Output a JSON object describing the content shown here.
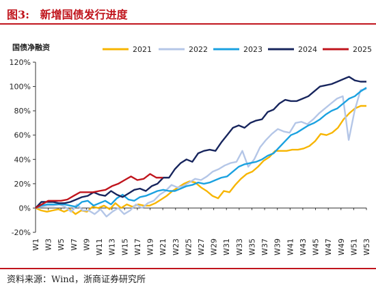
{
  "header": {
    "figure_label": "图3:",
    "title": "新增国债发行进度"
  },
  "source": "资料来源：Wind，浙商证券研究所",
  "colors": {
    "accent": "#c0141c"
  },
  "chart_data": {
    "type": "line",
    "ylabel": "国债净融资",
    "ylim": [
      -20,
      120
    ],
    "yticks": [
      -20,
      0,
      20,
      40,
      60,
      80,
      100,
      120
    ],
    "ytick_labels": [
      "-20%",
      "0%",
      "20%",
      "40%",
      "60%",
      "80%",
      "100%",
      "120%"
    ],
    "xtick_labels": [
      "W1",
      "W3",
      "W5",
      "W7",
      "W9",
      "W11",
      "W13",
      "W15",
      "W17",
      "W19",
      "W21",
      "W23",
      "W25",
      "W27",
      "W29",
      "W31",
      "W33",
      "W35",
      "W37",
      "W39",
      "W41",
      "W43",
      "W45",
      "W47",
      "W49",
      "W51",
      "W53"
    ],
    "legend_position": "top",
    "grid": false,
    "weeks": 53,
    "series": [
      {
        "name": "2021",
        "color": "#f7b500",
        "values": [
          0,
          -2,
          -3,
          -2,
          -1,
          -3,
          -1,
          -5,
          -2,
          -3,
          1,
          0,
          2,
          -1,
          4,
          0,
          3,
          1,
          3,
          2,
          2,
          4,
          7,
          10,
          14,
          17,
          20,
          22,
          21,
          17,
          14,
          10,
          8,
          14,
          13,
          19,
          24,
          28,
          30,
          34,
          39,
          42,
          47,
          47,
          47,
          48,
          48,
          49,
          51,
          55,
          61,
          60,
          62,
          66,
          73,
          78,
          82,
          84,
          84
        ]
      },
      {
        "name": "2022",
        "color": "#b4c6e7",
        "values": [
          0,
          1,
          2,
          2,
          3,
          1,
          -3,
          3,
          -2,
          -2,
          -5,
          -1,
          -7,
          -3,
          0,
          -5,
          -2,
          3,
          0,
          4,
          6,
          11,
          14,
          19,
          17,
          18,
          21,
          24,
          23,
          26,
          30,
          32,
          35,
          37,
          38,
          47,
          34,
          40,
          50,
          56,
          61,
          65,
          63,
          62,
          70,
          71,
          69,
          73,
          78,
          82,
          86,
          90,
          92,
          56,
          80,
          97,
          98
        ]
      },
      {
        "name": "2023",
        "color": "#1aa1e0",
        "values": [
          0,
          2,
          3,
          3,
          3,
          3,
          2,
          1,
          5,
          6,
          2,
          4,
          6,
          3,
          8,
          11,
          7,
          6,
          9,
          10,
          12,
          14,
          15,
          14,
          14,
          16,
          18,
          19,
          21,
          20,
          21,
          23,
          25,
          26,
          30,
          34,
          36,
          37,
          38,
          40,
          43,
          45,
          50,
          55,
          60,
          62,
          65,
          68,
          70,
          73,
          77,
          80,
          82,
          86,
          90,
          92,
          96,
          99
        ]
      },
      {
        "name": "2024",
        "color": "#17255d",
        "values": [
          0,
          5,
          5,
          5,
          4,
          4,
          5,
          7,
          9,
          10,
          13,
          11,
          10,
          14,
          11,
          9,
          12,
          15,
          16,
          14,
          18,
          20,
          25,
          25,
          32,
          37,
          40,
          38,
          45,
          47,
          48,
          47,
          54,
          60,
          66,
          68,
          66,
          70,
          72,
          73,
          79,
          81,
          86,
          89,
          88,
          88,
          90,
          92,
          96,
          100,
          101,
          102,
          104,
          106,
          108,
          105,
          104,
          104
        ]
      },
      {
        "name": "2025",
        "color": "#c0141c",
        "values": [
          0,
          3,
          6,
          6,
          6,
          7,
          10,
          13,
          13,
          13,
          14,
          15,
          18,
          20,
          23,
          26,
          23,
          24,
          28,
          25,
          25
        ]
      }
    ]
  }
}
